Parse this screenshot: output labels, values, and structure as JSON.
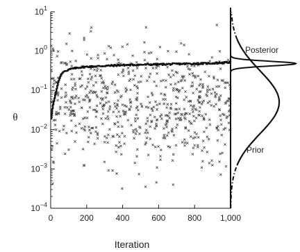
{
  "chart_data": {
    "type": "scatter",
    "xlabel": "Iteration",
    "ylabel": "θ",
    "xlim": [
      0,
      1000
    ],
    "ylim_log10": [
      -4,
      1
    ],
    "y_scale": "log",
    "x_ticks": [
      {
        "value": 0,
        "label": "0"
      },
      {
        "value": 200,
        "label": "200"
      },
      {
        "value": 400,
        "label": "400"
      },
      {
        "value": 600,
        "label": "600"
      },
      {
        "value": 800,
        "label": "800"
      },
      {
        "value": 1000,
        "label": "1,000"
      }
    ],
    "y_ticks": [
      {
        "base": "10",
        "exp": "1",
        "log10": 1
      },
      {
        "base": "10",
        "exp": "0",
        "log10": 0
      },
      {
        "base": "10",
        "exp": "−1",
        "log10": -1
      },
      {
        "base": "10",
        "exp": "−2",
        "log10": -2
      },
      {
        "base": "10",
        "exp": "−3",
        "log10": -3
      },
      {
        "base": "10",
        "exp": "−4",
        "log10": -4
      }
    ],
    "grid": false,
    "annotations": [
      {
        "text": "Posterior",
        "target": "posterior-density"
      },
      {
        "text": "Prior",
        "target": "prior-density"
      }
    ],
    "posterior_mean_trace": [
      {
        "x": 0,
        "y": 0.019
      },
      {
        "x": 10,
        "y": 0.04
      },
      {
        "x": 25,
        "y": 0.08
      },
      {
        "x": 40,
        "y": 0.16
      },
      {
        "x": 55,
        "y": 0.25
      },
      {
        "x": 70,
        "y": 0.3
      },
      {
        "x": 100,
        "y": 0.34
      },
      {
        "x": 150,
        "y": 0.38
      },
      {
        "x": 200,
        "y": 0.4
      },
      {
        "x": 300,
        "y": 0.42
      },
      {
        "x": 400,
        "y": 0.44
      },
      {
        "x": 500,
        "y": 0.45
      },
      {
        "x": 600,
        "y": 0.46
      },
      {
        "x": 700,
        "y": 0.47
      },
      {
        "x": 800,
        "y": 0.48
      },
      {
        "x": 900,
        "y": 0.49
      },
      {
        "x": 1000,
        "y": 0.52
      }
    ],
    "samples": {
      "marker": "x",
      "iterations": 1000,
      "approx_count": 700,
      "y_range": [
        0.0003,
        5
      ],
      "log10_center": -1.35,
      "log10_spread": 0.7
    },
    "prior_density": {
      "distribution": "lognormal",
      "median": 0.05,
      "log10_sd": 0.8,
      "style": "dash-dot tails, solid center"
    },
    "posterior_density": {
      "distribution": "lognormal",
      "median": 0.48,
      "log10_sd": 0.06,
      "peak_relative_to_prior": 2.5
    }
  }
}
